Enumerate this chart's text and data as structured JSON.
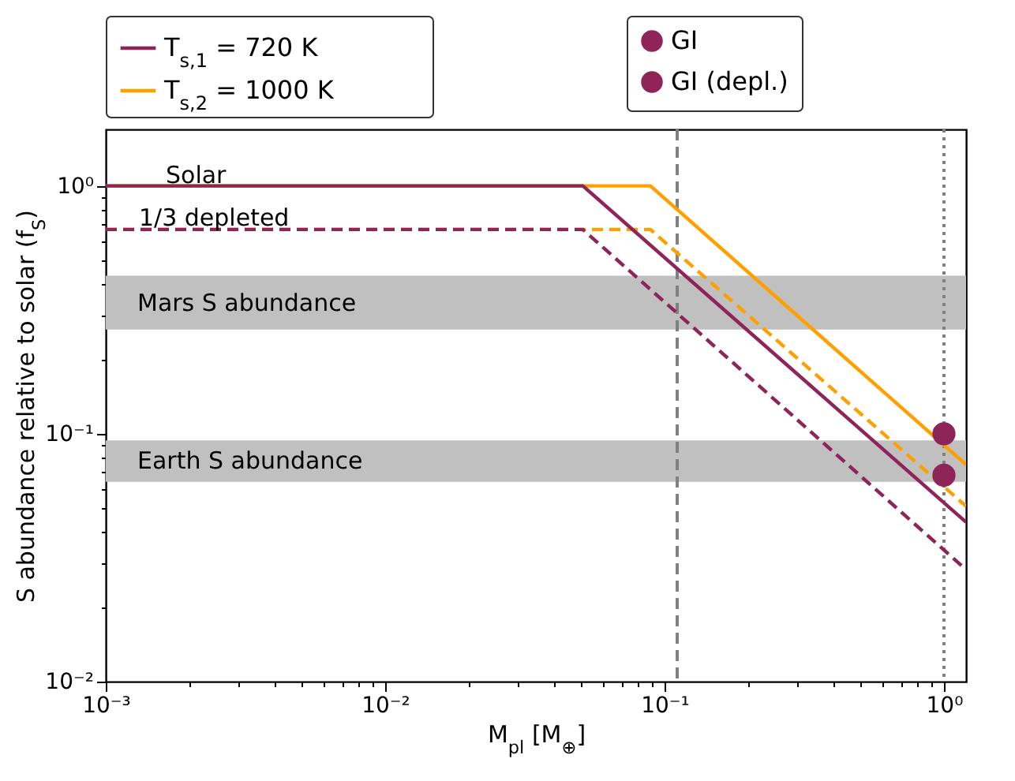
{
  "chart_data": {
    "type": "line",
    "xlabel": "M$_{pl}$ [M$_{⊕}$]",
    "ylabel": "S abundance relative to solar (f$_{S}$)",
    "log": "xy",
    "grid": false,
    "legend": "top",
    "xlim": [
      0.001,
      1.2
    ],
    "ylim": [
      0.01,
      1.69
    ],
    "xticks": [
      {
        "value": 0.001,
        "label": "10⁻³"
      },
      {
        "value": 0.002,
        "label": null
      },
      {
        "value": 0.003,
        "label": null
      },
      {
        "value": 0.004,
        "label": null
      },
      {
        "value": 0.005,
        "label": null
      },
      {
        "value": 0.006,
        "label": null
      },
      {
        "value": 0.007,
        "label": null
      },
      {
        "value": 0.008,
        "label": null
      },
      {
        "value": 0.009,
        "label": null
      },
      {
        "value": 0.01,
        "label": "10⁻²"
      },
      {
        "value": 0.02,
        "label": null
      },
      {
        "value": 0.03,
        "label": null
      },
      {
        "value": 0.04,
        "label": null
      },
      {
        "value": 0.05,
        "label": null
      },
      {
        "value": 0.06,
        "label": null
      },
      {
        "value": 0.07,
        "label": null
      },
      {
        "value": 0.08,
        "label": null
      },
      {
        "value": 0.09,
        "label": null
      },
      {
        "value": 0.1,
        "label": "10⁻¹"
      },
      {
        "value": 0.2,
        "label": null
      },
      {
        "value": 0.3,
        "label": null
      },
      {
        "value": 0.4,
        "label": null
      },
      {
        "value": 0.5,
        "label": null
      },
      {
        "value": 0.6,
        "label": null
      },
      {
        "value": 0.7,
        "label": null
      },
      {
        "value": 0.8,
        "label": null
      },
      {
        "value": 0.9,
        "label": null
      },
      {
        "value": 1,
        "label": "10⁰"
      }
    ],
    "yticks": [
      {
        "value": 0.01,
        "label": "10⁻²"
      },
      {
        "value": 0.02,
        "label": null
      },
      {
        "value": 0.03,
        "label": null
      },
      {
        "value": 0.04,
        "label": null
      },
      {
        "value": 0.05,
        "label": null
      },
      {
        "value": 0.06,
        "label": null
      },
      {
        "value": 0.07,
        "label": null
      },
      {
        "value": 0.08,
        "label": null
      },
      {
        "value": 0.09,
        "label": null
      },
      {
        "value": 0.1,
        "label": "10⁻¹"
      },
      {
        "value": 0.2,
        "label": null
      },
      {
        "value": 0.3,
        "label": null
      },
      {
        "value": 0.4,
        "label": null
      },
      {
        "value": 0.5,
        "label": null
      },
      {
        "value": 0.6,
        "label": null
      },
      {
        "value": 0.7,
        "label": null
      },
      {
        "value": 0.8,
        "label": null
      },
      {
        "value": 0.9,
        "label": null
      },
      {
        "value": 1,
        "label": "10⁰"
      }
    ],
    "series": [
      {
        "name": "T$_{s,1}$ = 720 K",
        "color": "#8e2457",
        "line_style": "solid",
        "x": [
          0.001,
          0.051,
          1.2
        ],
        "values": [
          1,
          1,
          0.044
        ]
      },
      {
        "name": "T$_{s,2}$ = 1000 K",
        "color": "#ffa000",
        "line_style": "solid",
        "x": [
          0.001,
          0.089,
          1.2
        ],
        "values": [
          1,
          1,
          0.075
        ]
      },
      {
        "color": "#8e2457",
        "line_style": "dashed",
        "x": [
          0.001,
          0.051,
          1.2
        ],
        "values": [
          0.667,
          0.667,
          0.0283
        ]
      },
      {
        "color": "#ffa000",
        "line_style": "dashed",
        "x": [
          0.001,
          0.089,
          1.2
        ],
        "values": [
          0.667,
          0.667,
          0.051
        ]
      },
      {
        "name": "GI",
        "type": "scatter",
        "marker": "circle",
        "color": "#8e2457",
        "x": [
          1
        ],
        "values": [
          0.1
        ]
      },
      {
        "name": "GI (depl.)",
        "type": "scatter",
        "marker": "circle",
        "color": "#8e2457",
        "x": [
          1
        ],
        "values": [
          0.068
        ]
      }
    ],
    "bands": [
      {
        "axis": "y",
        "from": 0.263,
        "to": 0.434,
        "label": "Mars S abundance",
        "color": "#c0c0c0"
      },
      {
        "axis": "y",
        "from": 0.064,
        "to": 0.094,
        "label": "Earth S abundance",
        "color": "#c0c0c0"
      }
    ],
    "ref_lines": [
      {
        "axis": "x",
        "value": 0.111,
        "color": "#808080",
        "line_style": "dashed"
      },
      {
        "axis": "x",
        "value": 1,
        "color": "#808080",
        "line_style": "dotted"
      }
    ],
    "annotations": [
      "Solar",
      "1/3 depleted"
    ]
  }
}
